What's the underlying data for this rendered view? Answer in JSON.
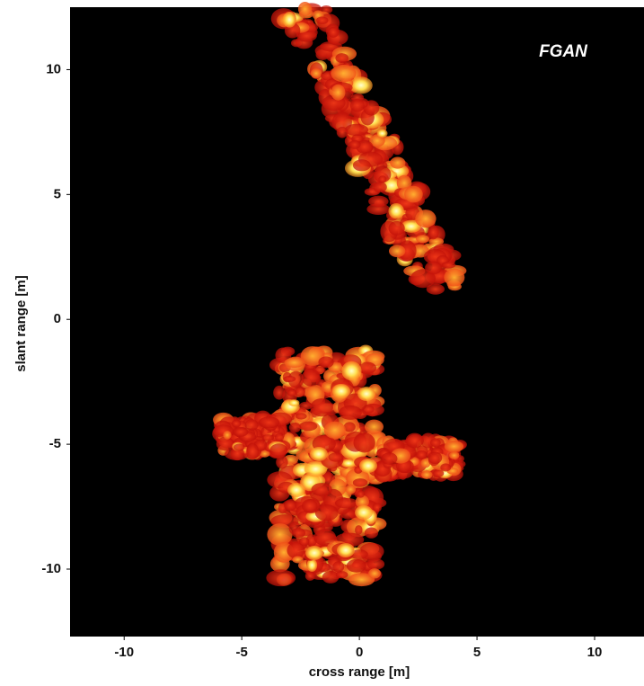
{
  "chart_data": {
    "type": "image",
    "annotation": "FGAN",
    "x_label": "cross range [m]",
    "y_label": "slant range [m]",
    "xlim": [
      -12.3,
      12.1
    ],
    "xticks": [
      -10,
      -5,
      0,
      5,
      10
    ],
    "ylim": [
      -12.7,
      12.5
    ],
    "yticks": [
      -10,
      -5,
      0,
      5,
      10
    ]
  }
}
